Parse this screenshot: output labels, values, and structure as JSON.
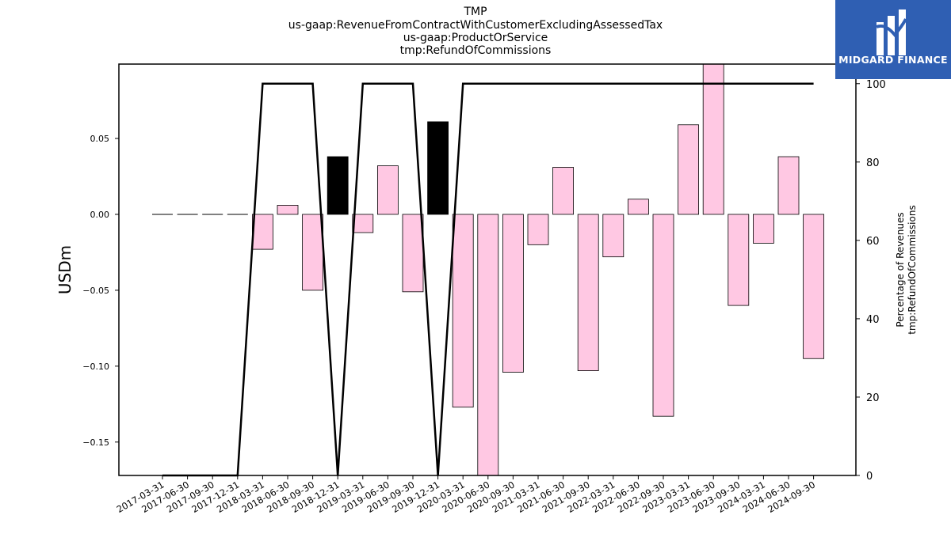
{
  "title_lines": [
    "TMP",
    "us-gaap:RevenueFromContractWithCustomerExcludingAssessedTax",
    "us-gaap:ProductOrService",
    "tmp:RefundOfCommissions"
  ],
  "logo": {
    "text": "MIDGARD FINANCE",
    "color": "#2f5fb3"
  },
  "chart_data": {
    "type": "bar",
    "secondary_type": "line",
    "categories": [
      "2017-03-31",
      "2017-06-30",
      "2017-09-30",
      "2017-12-31",
      "2018-03-31",
      "2018-06-30",
      "2018-09-30",
      "2018-12-31",
      "2019-03-31",
      "2019-06-30",
      "2019-09-30",
      "2019-12-31",
      "2020-03-31",
      "2020-06-30",
      "2020-09-30",
      "2021-03-31",
      "2021-06-30",
      "2021-09-30",
      "2022-03-31",
      "2022-06-30",
      "2022-09-30",
      "2023-03-31",
      "2023-06-30",
      "2023-09-30",
      "2024-03-31",
      "2024-06-30",
      "2024-09-30"
    ],
    "values": [
      0,
      0,
      0,
      0,
      -0.023,
      0.006,
      -0.05,
      0.038,
      -0.012,
      0.032,
      -0.051,
      0.061,
      -0.127,
      -0.185,
      -0.104,
      -0.02,
      0.031,
      -0.103,
      -0.028,
      0.01,
      -0.133,
      0.059,
      0.107,
      -0.06,
      -0.019,
      0.038,
      -0.095
    ],
    "bar_style": [
      "dash",
      "dash",
      "dash",
      "dash",
      "pink",
      "pink",
      "pink",
      "black",
      "pink",
      "pink",
      "pink",
      "black",
      "pink",
      "pink",
      "pink",
      "pink",
      "pink",
      "pink",
      "pink",
      "pink",
      "pink",
      "pink",
      "pink",
      "pink",
      "pink",
      "pink",
      "pink"
    ],
    "percentage": [
      0,
      0,
      0,
      0,
      100,
      100,
      100,
      0,
      100,
      100,
      100,
      0,
      100,
      100,
      100,
      100,
      100,
      100,
      100,
      100,
      100,
      100,
      100,
      100,
      100,
      100,
      100
    ],
    "ylabel": "USDm",
    "ylabel2_lines": [
      "Percentage of Revenues",
      "tmp:RefundOfCommissions"
    ],
    "ylim": [
      -0.172,
      0.099
    ],
    "ylim2": [
      0,
      105
    ],
    "yticks": [
      -0.15,
      -0.1,
      -0.05,
      0.0,
      0.05
    ],
    "ytick_labels": [
      "−0.15",
      "−0.10",
      "−0.05",
      "0.00",
      "0.05"
    ],
    "yticks2": [
      0,
      20,
      40,
      60,
      80,
      100
    ],
    "ytick2_labels": [
      "0",
      "20",
      "40",
      "60",
      "80",
      "100"
    ],
    "colors": {
      "positive_bar": "#ffc8e3",
      "reversed_bar": "#000000",
      "line": "#000000"
    },
    "grid": false
  }
}
